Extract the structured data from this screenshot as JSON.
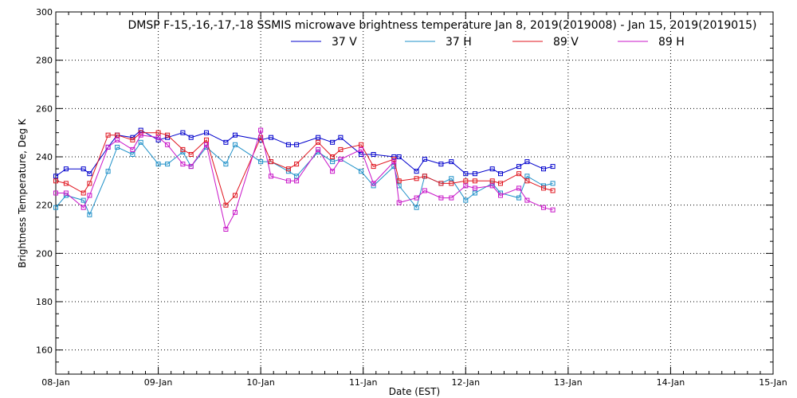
{
  "chart_data": {
    "type": "line",
    "title": "DMSP F-15,-16,-17,-18 SSMIS microwave brightness temperature Jan  8, 2019(2019008) - Jan 15, 2019(2019015)",
    "xlabel": "Date (EST)",
    "ylabel": "Brightness Temperature, Deg K",
    "xlim": [
      0,
      7
    ],
    "ylim": [
      150,
      300
    ],
    "x_tick_labels": [
      "08-Jan",
      "09-Jan",
      "10-Jan",
      "11-Jan",
      "12-Jan",
      "13-Jan",
      "14-Jan",
      "15-Jan"
    ],
    "y_ticks": [
      160,
      180,
      200,
      220,
      240,
      260,
      280,
      300
    ],
    "grid": true,
    "legend_position": "top-center",
    "series": [
      {
        "name": "37 V",
        "color": "#0000cc",
        "x": [
          0.0,
          0.1,
          0.27,
          0.33,
          0.51,
          0.6,
          0.75,
          0.83,
          1.0,
          1.09,
          1.24,
          1.32,
          1.47,
          1.66,
          1.75,
          2.0,
          2.1,
          2.27,
          2.35,
          2.56,
          2.7,
          2.78,
          2.98,
          3.1,
          3.3,
          3.35,
          3.52,
          3.6,
          3.76,
          3.86,
          4.0,
          4.09,
          4.26,
          4.34,
          4.52,
          4.6,
          4.76,
          4.85
        ],
        "y": [
          232,
          235,
          235,
          233,
          244,
          249,
          248,
          251,
          247,
          248,
          250,
          248,
          250,
          246,
          249,
          247,
          248,
          245,
          245,
          248,
          246,
          248,
          241,
          241,
          240,
          240,
          234,
          239,
          237,
          238,
          233,
          233,
          235,
          233,
          236,
          238,
          235,
          236
        ]
      },
      {
        "name": "37 H",
        "color": "#1e90c8",
        "x": [
          0.0,
          0.1,
          0.27,
          0.33,
          0.51,
          0.6,
          0.75,
          0.83,
          1.0,
          1.09,
          1.24,
          1.32,
          1.47,
          1.66,
          1.75,
          2.0,
          2.1,
          2.27,
          2.35,
          2.56,
          2.7,
          2.78,
          2.98,
          3.1,
          3.3,
          3.35,
          3.52,
          3.6,
          3.76,
          3.86,
          4.0,
          4.09,
          4.26,
          4.34,
          4.52,
          4.6,
          4.76,
          4.85
        ],
        "y": [
          219,
          224,
          222,
          216,
          234,
          244,
          241,
          246,
          237,
          237,
          242,
          236,
          244,
          237,
          245,
          238,
          238,
          234,
          232,
          242,
          238,
          239,
          234,
          228,
          236,
          228,
          219,
          232,
          229,
          231,
          222,
          225,
          229,
          225,
          223,
          232,
          228,
          229
        ]
      },
      {
        "name": "89 V",
        "color": "#e0141e",
        "x": [
          0.0,
          0.1,
          0.27,
          0.33,
          0.51,
          0.6,
          0.75,
          0.83,
          1.0,
          1.09,
          1.24,
          1.32,
          1.47,
          1.66,
          1.75,
          2.0,
          2.1,
          2.27,
          2.35,
          2.56,
          2.7,
          2.78,
          2.98,
          3.1,
          3.3,
          3.35,
          3.52,
          3.6,
          3.76,
          3.86,
          4.0,
          4.09,
          4.26,
          4.34,
          4.52,
          4.6,
          4.76,
          4.85
        ],
        "y": [
          230,
          229,
          225,
          229,
          249,
          249,
          247,
          250,
          250,
          249,
          243,
          241,
          247,
          220,
          224,
          248,
          238,
          235,
          237,
          246,
          240,
          243,
          245,
          236,
          239,
          230,
          231,
          232,
          229,
          229,
          230,
          230,
          230,
          229,
          233,
          230,
          227,
          226
        ]
      },
      {
        "name": "89 H",
        "color": "#c814c8",
        "x": [
          0.0,
          0.1,
          0.27,
          0.33,
          0.51,
          0.6,
          0.75,
          0.83,
          1.0,
          1.09,
          1.24,
          1.32,
          1.47,
          1.66,
          1.75,
          2.0,
          2.1,
          2.27,
          2.35,
          2.56,
          2.7,
          2.78,
          2.98,
          3.1,
          3.3,
          3.35,
          3.52,
          3.6,
          3.76,
          3.86,
          4.0,
          4.09,
          4.26,
          4.34,
          4.52,
          4.6,
          4.76,
          4.85
        ],
        "y": [
          225,
          225,
          219,
          224,
          244,
          247,
          243,
          249,
          248,
          245,
          237,
          236,
          245,
          210,
          217,
          251,
          232,
          230,
          230,
          243,
          234,
          239,
          243,
          229,
          238,
          221,
          223,
          226,
          223,
          223,
          228,
          227,
          228,
          224,
          227,
          222,
          219,
          218
        ]
      }
    ]
  }
}
